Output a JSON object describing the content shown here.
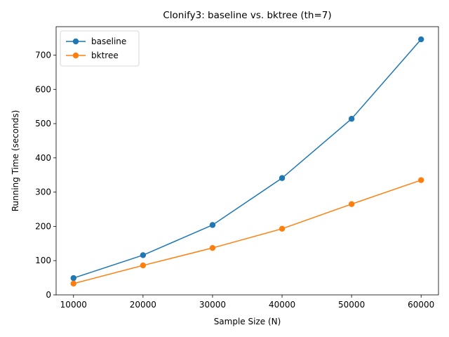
{
  "chart_data": {
    "type": "line",
    "title": "Clonify3: baseline vs. bktree (th=7)",
    "xlabel": "Sample Size (N)",
    "ylabel": "Running Time (seconds)",
    "x": [
      10000,
      20000,
      30000,
      40000,
      50000,
      60000
    ],
    "xticks": [
      10000,
      20000,
      30000,
      40000,
      50000,
      60000
    ],
    "xlim": [
      7500,
      62500
    ],
    "yticks": [
      0,
      100,
      200,
      300,
      400,
      500,
      600,
      700
    ],
    "ylim": [
      0,
      783
    ],
    "grid": false,
    "legend": "top-left",
    "marker": "circle",
    "series": [
      {
        "name": "baseline",
        "color": "#1f77b4",
        "values": [
          49,
          116,
          204,
          341,
          514,
          746
        ]
      },
      {
        "name": "bktree",
        "color": "#ff7f0e",
        "values": [
          33,
          86,
          137,
          193,
          265,
          335
        ]
      }
    ]
  }
}
